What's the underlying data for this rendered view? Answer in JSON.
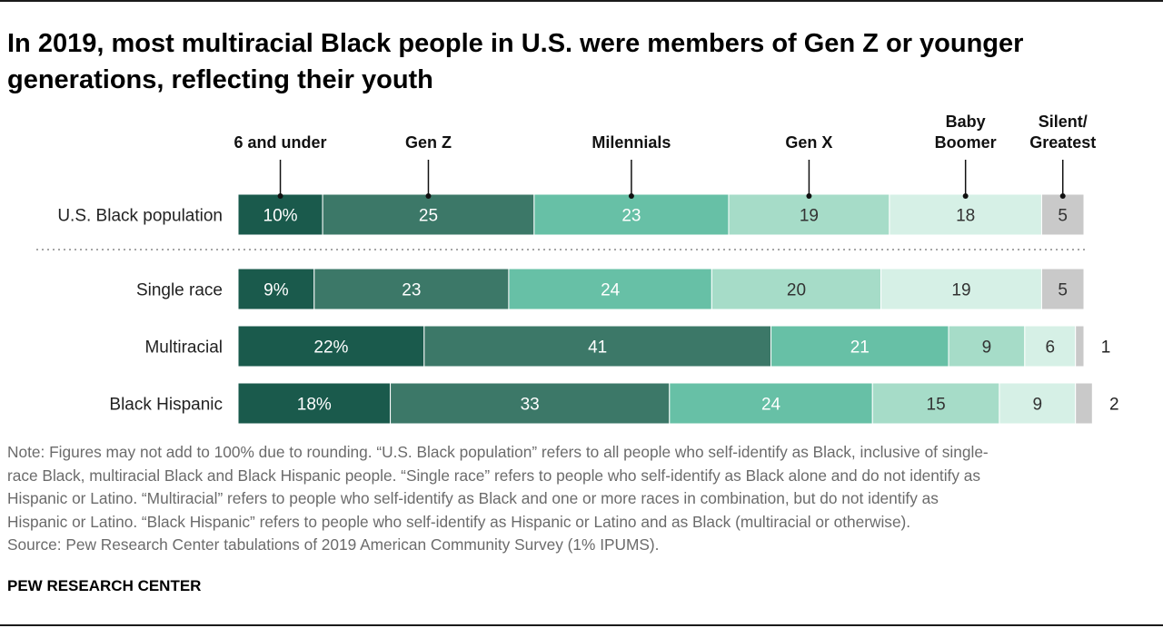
{
  "title": "In 2019, most multiracial Black people in U.S. were members of Gen Z or younger generations, reflecting their youth",
  "chart_data": {
    "type": "bar",
    "orientation": "horizontal-stacked-100",
    "categories": [
      "U.S. Black population",
      "Single race",
      "Multiracial",
      "Black Hispanic"
    ],
    "series": [
      {
        "name": "6 and under",
        "values": [
          10,
          9,
          22,
          18
        ],
        "labels": [
          "10%",
          "9%",
          "22%",
          "18%"
        ],
        "color": "#1a5a4c"
      },
      {
        "name": "Gen Z",
        "values": [
          25,
          23,
          41,
          33
        ],
        "labels": [
          "25",
          "23",
          "41",
          "33"
        ],
        "color": "#3c7868"
      },
      {
        "name": "Milennials",
        "values": [
          23,
          24,
          21,
          24
        ],
        "labels": [
          "23",
          "24",
          "21",
          "24"
        ],
        "color": "#67c0a6"
      },
      {
        "name": "Gen X",
        "values": [
          19,
          20,
          9,
          15
        ],
        "labels": [
          "19",
          "20",
          "9",
          "15"
        ],
        "color": "#a6dcc8"
      },
      {
        "name": "Baby Boomer",
        "values": [
          18,
          19,
          6,
          9
        ],
        "labels": [
          "18",
          "19",
          "6",
          "9"
        ],
        "color": "#d6f0e6"
      },
      {
        "name": "Silent/ Greatest",
        "values": [
          5,
          5,
          1,
          2
        ],
        "labels": [
          "5",
          "5",
          "1",
          "2"
        ],
        "color": "#c9c9c9"
      }
    ],
    "label_colors": [
      "#ffffff",
      "#ffffff",
      "#ffffff",
      "#333333",
      "#333333",
      "#333333"
    ],
    "legend_lines": [
      [
        "6 and under"
      ],
      [
        "Gen Z"
      ],
      [
        "Milennials"
      ],
      [
        "Gen X"
      ],
      [
        "Baby",
        "Boomer"
      ],
      [
        "Silent/",
        "Greatest"
      ]
    ],
    "separator_after_row": 0,
    "legend_placement": "top, callouts into first bar",
    "grid": false
  },
  "note_lines": [
    "Note: Figures may not add to 100% due to rounding. “U.S. Black population” refers to all people who self-identify as Black, inclusive of single-",
    "race Black, multiracial Black and Black Hispanic people. “Single race” refers to people who self-identify as Black alone and do not identify as",
    "Hispanic or Latino. “Multiracial” refers to people who self-identify as Black and one or more races in combination, but do not identify as",
    "Hispanic or Latino. “Black Hispanic” refers to people who self-identify as Hispanic or Latino and as Black (multiracial or otherwise).",
    "Source: Pew Research Center tabulations of 2019 American Community Survey (1% IPUMS)."
  ],
  "brand": "PEW RESEARCH CENTER"
}
